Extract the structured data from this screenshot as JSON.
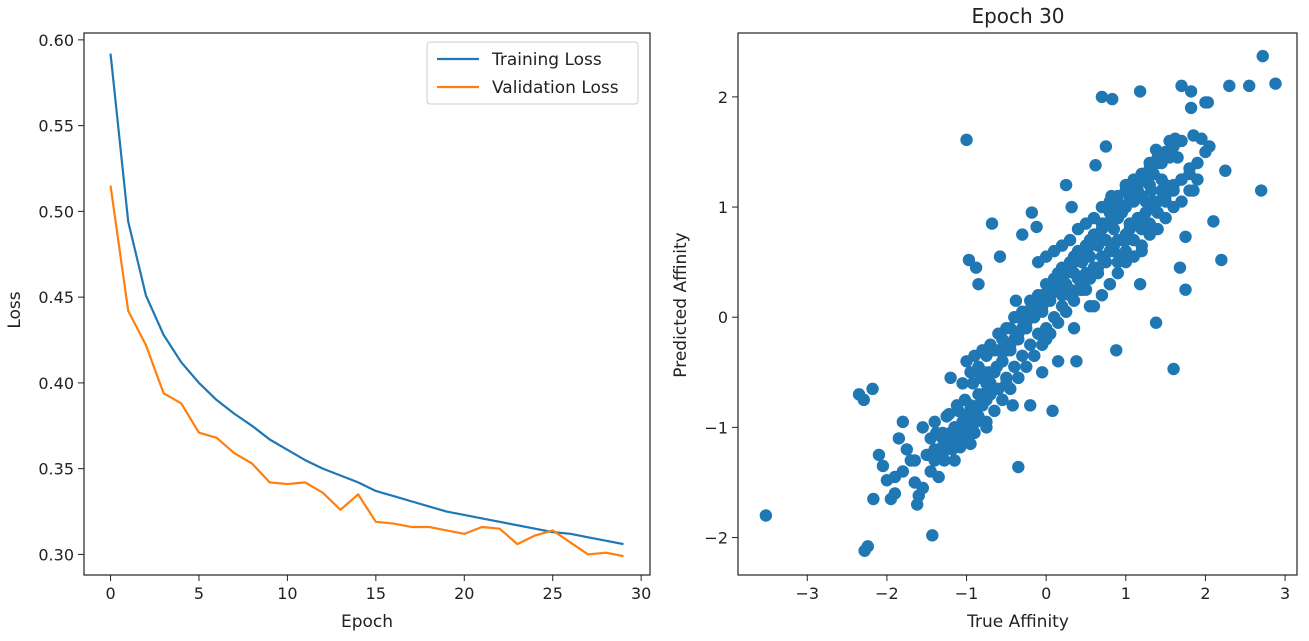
{
  "chart_data": [
    {
      "type": "line",
      "title": "",
      "xlabel": "Epoch",
      "ylabel": "Loss",
      "xlim": [
        -1.5,
        30.5
      ],
      "ylim": [
        0.288,
        0.604
      ],
      "xticks": [
        0,
        5,
        10,
        15,
        20,
        25,
        30
      ],
      "yticks": [
        0.3,
        0.35,
        0.4,
        0.45,
        0.5,
        0.55,
        0.6
      ],
      "ytick_labels": [
        "0.30",
        "0.35",
        "0.40",
        "0.45",
        "0.50",
        "0.55",
        "0.60"
      ],
      "legend_position": "top-right",
      "grid": false,
      "x": [
        0,
        1,
        2,
        3,
        4,
        5,
        6,
        7,
        8,
        9,
        10,
        11,
        12,
        13,
        14,
        15,
        16,
        17,
        18,
        19,
        20,
        21,
        22,
        23,
        24,
        25,
        26,
        27,
        28,
        29
      ],
      "series": [
        {
          "name": "Training Loss",
          "color": "#1f77b4",
          "values": [
            0.592,
            0.494,
            0.451,
            0.428,
            0.412,
            0.4,
            0.39,
            0.382,
            0.375,
            0.367,
            0.361,
            0.355,
            0.35,
            0.346,
            0.342,
            0.337,
            0.334,
            0.331,
            0.328,
            0.325,
            0.323,
            0.321,
            0.319,
            0.317,
            0.315,
            0.313,
            0.312,
            0.31,
            0.308,
            0.306
          ]
        },
        {
          "name": "Validation Loss",
          "color": "#ff7f0e",
          "values": [
            0.515,
            0.442,
            0.422,
            0.394,
            0.388,
            0.371,
            0.368,
            0.359,
            0.353,
            0.342,
            0.341,
            0.342,
            0.336,
            0.326,
            0.335,
            0.319,
            0.318,
            0.316,
            0.316,
            0.314,
            0.312,
            0.316,
            0.315,
            0.306,
            0.311,
            0.314,
            0.307,
            0.3,
            0.301,
            0.299
          ]
        }
      ]
    },
    {
      "type": "scatter",
      "title": "Epoch 30",
      "xlabel": "True Affinity",
      "ylabel": "Predicted Affinity",
      "xlim": [
        -3.87,
        3.15
      ],
      "ylim": [
        -2.34,
        2.58
      ],
      "xticks": [
        -3,
        -2,
        -1,
        0,
        1,
        2,
        3
      ],
      "xtick_labels": [
        "−3",
        "−2",
        "−1",
        "0",
        "1",
        "2",
        "3"
      ],
      "yticks": [
        -2,
        -1,
        0,
        1,
        2
      ],
      "ytick_labels": [
        "−2",
        "−1",
        "0",
        "1",
        "2"
      ],
      "grid": false,
      "color": "#1f77b4",
      "series": [
        {
          "x": [
            -3.52,
            -2.28,
            -2.24,
            -2.35,
            -2.29,
            -2.18,
            -2.17,
            -1.43,
            -1.0,
            -0.97,
            -0.88,
            0.7,
            0.83,
            1.18,
            1.55,
            1.38,
            1.7,
            1.82,
            2.03,
            2.3,
            2.55,
            2.72,
            2.88,
            2.7,
            2.25,
            1.95,
            2.1,
            -0.35,
            1.6,
            1.75,
            1.85,
            2.2,
            -1.6,
            -1.55,
            -1.45,
            -1.4,
            -1.35,
            -1.3,
            -1.25,
            -1.2,
            -1.15,
            -1.1,
            -1.05,
            -1.0,
            -0.95,
            -0.9,
            -0.85,
            -0.8,
            -0.75,
            -0.7,
            -1.7,
            -1.65,
            -1.75,
            -1.8,
            -1.9,
            -1.95,
            -2.0,
            -2.05,
            -2.1,
            -1.85,
            -1.28,
            -1.18,
            -1.08,
            -0.98,
            -0.88,
            -1.38,
            -1.48,
            -1.22,
            -1.12,
            -1.02,
            -0.92,
            -0.82,
            -0.72,
            -0.62,
            -0.55,
            -0.5,
            -0.4,
            -0.3,
            -0.2,
            -0.1,
            0.0,
            0.1,
            0.2,
            0.3,
            0.4,
            0.5,
            0.6,
            0.7,
            0.8,
            0.9,
            1.0,
            1.1,
            1.2,
            1.3,
            1.4,
            1.5,
            1.6,
            1.7,
            -0.6,
            -0.45,
            -0.35,
            -0.25,
            -0.15,
            -0.05,
            0.05,
            0.15,
            0.25,
            0.35,
            0.45,
            0.55,
            0.65,
            0.75,
            0.85,
            0.95,
            1.05,
            1.15,
            1.25,
            1.35,
            1.45,
            1.55,
            -1.0,
            -0.9,
            -0.8,
            -0.7,
            -0.6,
            -0.5,
            -0.4,
            -0.3,
            -0.2,
            -0.1,
            0.0,
            0.1,
            0.2,
            0.3,
            0.4,
            0.5,
            0.6,
            0.7,
            0.8,
            0.9,
            1.0,
            1.1,
            1.2,
            1.3,
            -0.65,
            -0.55,
            -0.45,
            -0.35,
            -0.25,
            -0.15,
            -0.05,
            0.05,
            0.15,
            0.25,
            0.35,
            0.45,
            0.55,
            0.65,
            0.75,
            0.85,
            0.95,
            1.05,
            1.15,
            1.25,
            1.35,
            1.45,
            -1.05,
            -0.95,
            -0.85,
            -0.75,
            -0.65,
            -0.55,
            -0.45,
            -0.35,
            -0.25,
            -0.15,
            -0.05,
            0.05,
            0.15,
            0.25,
            0.35,
            0.45,
            0.55,
            0.65,
            0.75,
            0.85,
            0.95,
            1.05,
            1.15,
            -1.15,
            -1.05,
            -0.95,
            -0.85,
            -0.75,
            -0.65,
            -0.55,
            -0.45,
            -0.35,
            -0.25,
            -0.15,
            -0.05,
            0.05,
            0.15,
            0.25,
            0.35,
            0.45,
            0.55,
            0.65,
            0.75,
            0.85,
            -1.3,
            -1.2,
            -1.1,
            -1.0,
            -0.9,
            -0.8,
            -0.7,
            -0.6,
            -0.5,
            -0.4,
            -0.3,
            -0.2,
            -0.1,
            0.0,
            0.1,
            0.2,
            0.3,
            0.4,
            0.5,
            -0.1,
            0.0,
            0.1,
            0.2,
            0.3,
            0.4,
            0.5,
            0.6,
            0.7,
            0.8,
            0.9,
            1.0,
            1.1,
            1.2,
            1.3,
            1.4,
            1.5,
            0.2,
            0.3,
            0.4,
            0.5,
            0.6,
            0.7,
            0.8,
            0.9,
            1.0,
            1.1,
            1.2,
            1.3,
            1.4,
            1.5,
            1.6,
            1.7,
            1.8,
            0.6,
            0.7,
            0.8,
            0.9,
            1.0,
            1.1,
            1.2,
            1.3,
            1.4,
            1.5,
            1.6,
            1.7,
            1.8,
            1.9,
            0.9,
            1.0,
            1.1,
            1.2,
            1.3,
            1.4,
            1.5,
            1.6,
            1.7,
            1.8,
            1.9,
            2.0,
            -1.65,
            -1.5,
            -1.35,
            -1.2,
            -1.05,
            -0.9,
            -0.75,
            -1.55,
            -1.4,
            -1.25,
            -1.1,
            -0.95,
            -0.8,
            -1.45,
            -1.3,
            -1.15,
            -1.0,
            -0.85,
            -1.4,
            -1.25,
            -1.1,
            -0.95,
            -1.55,
            -1.35,
            -1.15,
            -0.95,
            -0.75,
            -0.55,
            -0.35,
            -0.15,
            0.05,
            0.25,
            0.45,
            0.65,
            0.85,
            1.05,
            1.25,
            1.45,
            1.65,
            1.85,
            -0.2,
            0.15,
            0.55,
            0.95,
            1.35,
            -0.5,
            0.0,
            0.5,
            1.0,
            1.5,
            2.05,
            -0.85,
            -0.3,
            0.25,
            0.75,
            1.15,
            1.75,
            -0.05,
            0.35,
            0.8,
            1.2,
            -1.9,
            -1.8,
            -1.62,
            -0.12,
            0.4,
            0.62,
            1.62,
            1.82,
            2.0,
            -0.78,
            -0.58,
            -0.42,
            -0.38,
            0.08,
            0.38,
            0.88,
            1.18,
            1.68,
            1.38,
            -1.2,
            -0.68,
            -0.18,
            0.32,
            0.82,
            1.32
          ],
          "y": [
            -1.8,
            -2.12,
            -2.08,
            -0.7,
            -0.75,
            -0.65,
            -1.65,
            -1.98,
            1.61,
            0.52,
            0.45,
            2.0,
            1.98,
            2.05,
            1.6,
            1.52,
            2.1,
            2.05,
            1.95,
            2.1,
            2.1,
            2.37,
            2.12,
            1.15,
            1.33,
            1.62,
            0.87,
            -1.36,
            -0.47,
            0.73,
            1.15,
            0.52,
            -1.62,
            -1.55,
            -1.4,
            -1.3,
            -1.2,
            -1.1,
            -1.15,
            -1.05,
            -1.0,
            -1.1,
            -0.95,
            -0.9,
            -1.0,
            -0.85,
            -0.8,
            -0.7,
            -0.75,
            -0.6,
            -1.3,
            -1.5,
            -1.2,
            -1.4,
            -1.6,
            -1.65,
            -1.48,
            -1.35,
            -1.25,
            -1.1,
            -1.3,
            -1.2,
            -1.18,
            -1.05,
            -0.95,
            -1.05,
            -1.25,
            -0.88,
            -0.8,
            -0.75,
            -0.6,
            -0.55,
            -0.5,
            -0.45,
            -0.4,
            -0.3,
            -0.2,
            -0.1,
            0.0,
            0.1,
            0.15,
            0.25,
            0.35,
            0.45,
            0.55,
            0.65,
            0.75,
            0.85,
            0.95,
            1.05,
            1.15,
            1.2,
            1.3,
            1.35,
            1.4,
            1.45,
            1.55,
            1.6,
            -0.3,
            -0.25,
            -0.15,
            -0.05,
            0.05,
            0.1,
            0.2,
            0.3,
            0.4,
            0.5,
            0.6,
            0.65,
            0.75,
            0.85,
            0.95,
            1.0,
            1.1,
            1.15,
            1.25,
            1.3,
            1.4,
            1.45,
            -0.4,
            -0.35,
            -0.3,
            -0.25,
            -0.15,
            -0.1,
            0.0,
            0.05,
            0.15,
            0.2,
            0.3,
            0.35,
            0.45,
            0.5,
            0.6,
            0.65,
            0.7,
            0.8,
            0.85,
            0.9,
            1.0,
            1.05,
            1.1,
            1.2,
            -0.85,
            -0.75,
            -0.65,
            -0.55,
            -0.45,
            -0.35,
            -0.25,
            -0.15,
            -0.05,
            0.05,
            0.15,
            0.25,
            0.35,
            0.4,
            0.5,
            0.6,
            0.7,
            0.8,
            0.9,
            0.95,
            1.05,
            1.15,
            -0.6,
            -0.5,
            -0.45,
            -0.35,
            -0.3,
            -0.2,
            -0.1,
            0.0,
            0.05,
            0.15,
            0.2,
            0.3,
            0.4,
            0.45,
            0.55,
            0.6,
            0.7,
            0.75,
            0.85,
            0.9,
            0.95,
            1.05,
            1.1,
            -1.1,
            -0.95,
            -0.85,
            -0.7,
            -0.6,
            -0.5,
            -0.4,
            -0.3,
            -0.2,
            -0.1,
            0.0,
            0.05,
            0.15,
            0.25,
            0.3,
            0.4,
            0.5,
            0.55,
            0.65,
            0.7,
            0.8,
            -1.25,
            -1.15,
            -1.05,
            -1.0,
            -0.9,
            -0.8,
            -0.7,
            -0.65,
            -0.55,
            -0.45,
            -0.35,
            -0.25,
            -0.15,
            -0.1,
            0.0,
            0.1,
            0.2,
            0.25,
            0.35,
            0.5,
            0.55,
            0.6,
            0.65,
            0.7,
            0.8,
            0.85,
            0.9,
            1.0,
            1.05,
            1.1,
            1.2,
            1.25,
            1.3,
            1.4,
            1.45,
            1.5,
            0.2,
            0.25,
            0.35,
            0.4,
            0.45,
            0.55,
            0.6,
            0.7,
            0.75,
            0.85,
            0.9,
            1.0,
            1.05,
            1.1,
            1.2,
            1.25,
            1.3,
            0.1,
            0.2,
            0.3,
            0.4,
            0.5,
            0.55,
            0.65,
            0.75,
            0.8,
            0.9,
            1.0,
            1.05,
            1.15,
            1.25,
            0.5,
            0.6,
            0.7,
            0.8,
            0.85,
            0.95,
            1.05,
            1.15,
            1.25,
            1.35,
            1.4,
            1.5,
            -1.3,
            -1.25,
            -1.2,
            -1.15,
            -1.1,
            -1.05,
            -1.0,
            -1.0,
            -0.95,
            -0.9,
            -0.85,
            -0.8,
            -0.75,
            -1.1,
            -1.05,
            -1.0,
            -0.95,
            -0.9,
            -1.2,
            -1.15,
            -1.1,
            -1.05,
            -1.55,
            -1.45,
            -1.3,
            -1.15,
            -0.95,
            -0.75,
            -0.55,
            -0.35,
            -0.15,
            0.05,
            0.25,
            0.45,
            0.65,
            0.85,
            1.05,
            1.25,
            1.45,
            1.65,
            -0.8,
            -0.4,
            0.1,
            0.55,
            1.0,
            -0.6,
            -0.2,
            0.25,
            0.7,
            1.2,
            1.55,
            0.3,
            0.75,
            1.2,
            1.55,
            1.2,
            0.25,
            -0.5,
            -0.1,
            0.3,
            0.6,
            -1.45,
            -0.95,
            -1.7,
            0.82,
            0.35,
            1.38,
            1.62,
            1.9,
            1.95,
            -0.5,
            0.55,
            -0.8,
            0.15,
            -0.85,
            -0.4,
            -0.3,
            0.3,
            0.45,
            -0.05,
            -0.55,
            0.85,
            0.95,
            1.0,
            1.1,
            1.15
          ]
        }
      ]
    }
  ]
}
